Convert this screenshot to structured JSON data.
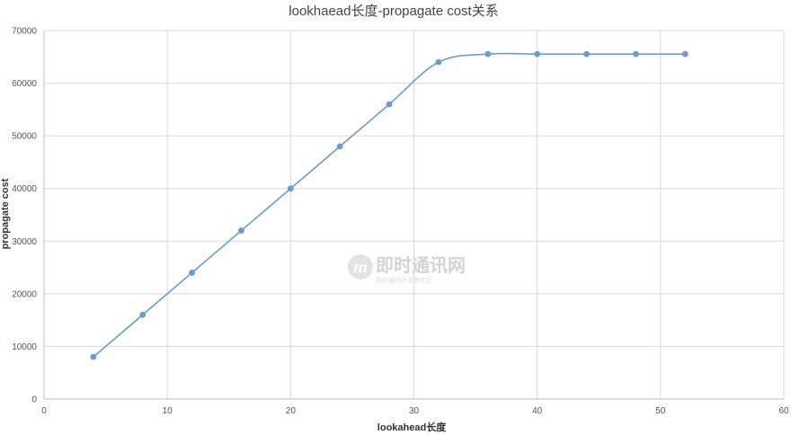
{
  "chart_data": {
    "type": "line",
    "title": "lookhaead长度-propagate cost关系",
    "xlabel": "lookahead长度",
    "ylabel": "propagate cost",
    "xlim": [
      0,
      60
    ],
    "ylim": [
      0,
      70000
    ],
    "xticks": [
      0,
      10,
      20,
      30,
      40,
      50,
      60
    ],
    "yticks": [
      0,
      10000,
      20000,
      30000,
      40000,
      50000,
      60000,
      70000
    ],
    "grid": true,
    "smooth": true,
    "series": [
      {
        "color": "#6b9bd2",
        "x": [
          4,
          8,
          12,
          16,
          20,
          24,
          28,
          32,
          36,
          40,
          44,
          48,
          52
        ],
        "y": [
          8000,
          16000,
          24000,
          32000,
          40000,
          48000,
          56000,
          64000,
          65536,
          65536,
          65536,
          65536,
          65536
        ]
      }
    ]
  },
  "watermark": {
    "text": "即时通讯网",
    "subtext": "即时通讯开发者社区",
    "color": "#d4d4d4"
  }
}
